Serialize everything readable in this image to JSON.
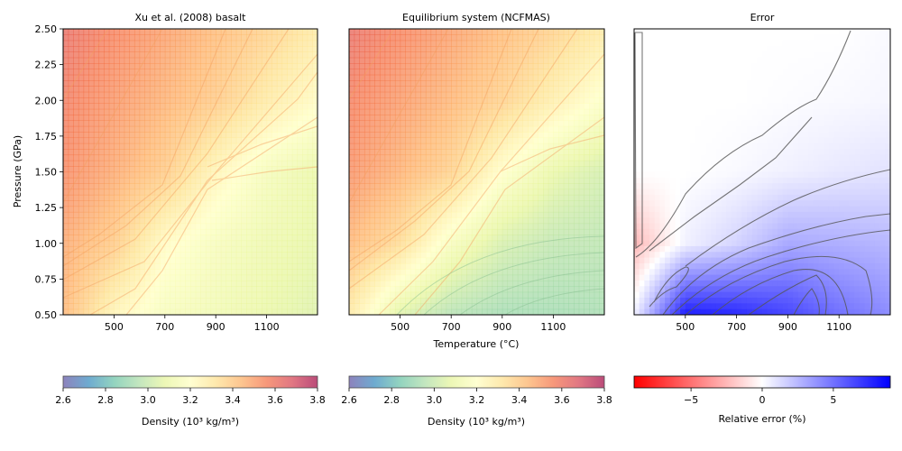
{
  "chart_data": [
    {
      "type": "heatmap",
      "title": "Xu et al. (2008) basalt",
      "xlabel": "",
      "ylabel": "Pressure (GPa)",
      "xlim": [
        300,
        1300
      ],
      "ylim": [
        0.5,
        2.5
      ],
      "xticks": [
        500,
        700,
        900,
        1100
      ],
      "yticks": [
        0.5,
        0.75,
        1.0,
        1.25,
        1.5,
        1.75,
        2.0,
        2.25,
        2.5
      ],
      "ytick_labels": [
        "0.50",
        "0.75",
        "1.00",
        "1.25",
        "1.50",
        "1.75",
        "2.00",
        "2.25",
        "2.50"
      ],
      "density_grid": {
        "T": [
          300,
          500,
          700,
          900,
          1100,
          1300
        ],
        "P": [
          0.5,
          1.0,
          1.5,
          2.0,
          2.5
        ],
        "values": [
          [
            3.45,
            3.25,
            3.15,
            3.12,
            3.08,
            3.05
          ],
          [
            3.48,
            3.4,
            3.22,
            3.15,
            3.1,
            3.07
          ],
          [
            3.55,
            3.48,
            3.4,
            3.25,
            3.14,
            3.08
          ],
          [
            3.58,
            3.52,
            3.46,
            3.4,
            3.3,
            3.22
          ],
          [
            3.62,
            3.56,
            3.5,
            3.44,
            3.38,
            3.3
          ]
        ]
      },
      "colorbar": {
        "label": "Density (10³ kg/m³)",
        "range": [
          2.6,
          3.8
        ],
        "ticks": [
          "2.6",
          "2.8",
          "3.0",
          "3.2",
          "3.4",
          "3.6",
          "3.8"
        ]
      }
    },
    {
      "type": "heatmap",
      "title": "Equilibrium system (NCFMAS)",
      "xlabel": "Temperature (°C)",
      "ylabel": "",
      "xlim": [
        300,
        1300
      ],
      "ylim": [
        0.5,
        2.5
      ],
      "xticks": [
        500,
        700,
        900,
        1100
      ],
      "density_grid": {
        "T": [
          300,
          500,
          700,
          900,
          1100,
          1300
        ],
        "P": [
          0.5,
          1.0,
          1.5,
          2.0,
          2.5
        ],
        "values": [
          [
            3.3,
            3.05,
            2.95,
            2.92,
            2.92,
            2.93
          ],
          [
            3.45,
            3.35,
            3.15,
            3.03,
            2.98,
            2.97
          ],
          [
            3.53,
            3.46,
            3.38,
            3.2,
            3.08,
            3.02
          ],
          [
            3.57,
            3.51,
            3.45,
            3.38,
            3.28,
            3.18
          ],
          [
            3.62,
            3.56,
            3.5,
            3.44,
            3.38,
            3.3
          ]
        ]
      },
      "colorbar": {
        "label": "Density (10³ kg/m³)",
        "range": [
          2.6,
          3.8
        ],
        "ticks": [
          "2.6",
          "2.8",
          "3.0",
          "3.2",
          "3.4",
          "3.6",
          "3.8"
        ]
      }
    },
    {
      "type": "heatmap",
      "title": "Error",
      "xlabel": "",
      "ylabel": "",
      "xlim": [
        300,
        1300
      ],
      "ylim": [
        0.5,
        2.5
      ],
      "xticks": [
        500,
        700,
        900,
        1100
      ],
      "error_grid": {
        "T": [
          300,
          500,
          700,
          900,
          1100,
          1300
        ],
        "P": [
          0.5,
          1.0,
          1.5,
          2.0,
          2.5
        ],
        "values": [
          [
            0.5,
            8.0,
            7.5,
            6.5,
            5.0,
            4.0
          ],
          [
            -2.5,
            0.5,
            1.5,
            3.0,
            2.8,
            2.5
          ],
          [
            0.0,
            0.0,
            0.2,
            0.5,
            0.8,
            1.0
          ],
          [
            0.0,
            0.0,
            0.0,
            0.1,
            0.2,
            0.3
          ],
          [
            0.0,
            0.0,
            0.0,
            0.0,
            0.0,
            0.2
          ]
        ]
      },
      "colorbar": {
        "label": "Relative error (%)",
        "range": [
          -9,
          9
        ],
        "ticks": [
          "−5",
          "0",
          "5"
        ],
        "tick_values": [
          -5,
          0,
          5
        ]
      }
    }
  ],
  "colors": {
    "spectral_stops": [
      "#5e4fa2",
      "#3288bd",
      "#66c2a5",
      "#abdda4",
      "#e6f598",
      "#ffffbf",
      "#fee08b",
      "#fdae61",
      "#f46d43",
      "#d53e4f",
      "#9e0142"
    ],
    "error_stops": [
      "#ff0000",
      "#ffffff",
      "#0000ff"
    ]
  }
}
